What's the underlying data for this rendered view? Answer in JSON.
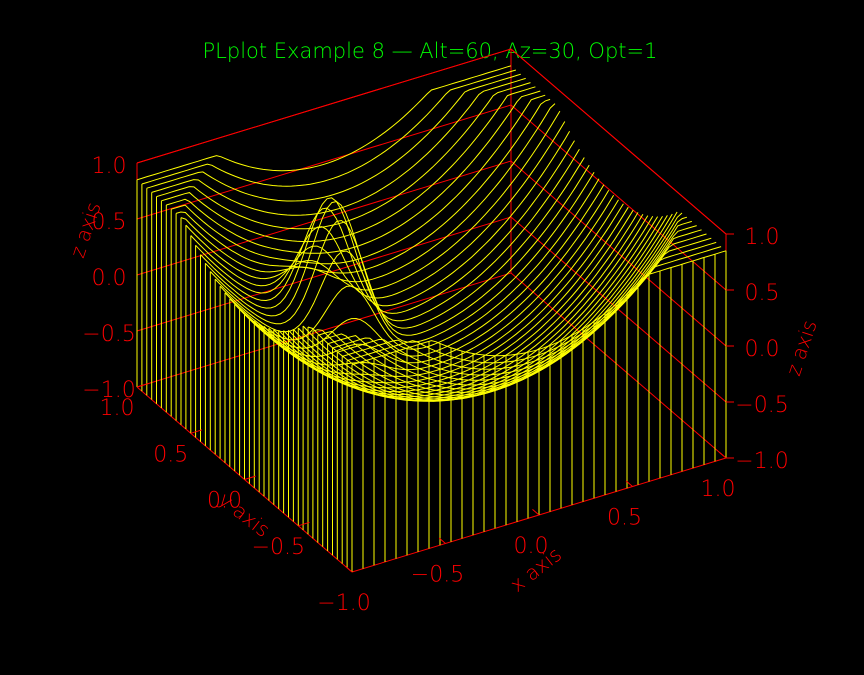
{
  "colors": {
    "background": "#000000",
    "title": "#00ff00",
    "axes": "#ff0000",
    "surface": "#ffff00"
  },
  "chart_data": {
    "type": "surface3d",
    "title": "PLplot Example 8 — Alt=60, Az=30, Opt=1",
    "view": {
      "altitude_deg": 60,
      "azimuth_deg": 30,
      "opt": 1
    },
    "xlabel": "x axis",
    "ylabel": "y axis",
    "zlabel": "z axis",
    "xlim": [
      -1.0,
      1.0
    ],
    "ylim": [
      -1.0,
      1.0
    ],
    "zlim": [
      -1.0,
      1.0
    ],
    "x_ticks": [
      "−1.0",
      "−0.5",
      "0.0",
      "0.5",
      "1.0"
    ],
    "y_ticks": [
      "−0.5",
      "0.0",
      "0.5",
      "1.0"
    ],
    "z_ticks_left": [
      "1.0",
      "0.5",
      "0.0",
      "−0.5",
      "−1.0"
    ],
    "z_ticks_right": [
      "1.0",
      "0.5",
      "0.0",
      "−0.5",
      "−1.0"
    ],
    "x_tick_values": [
      -1.0,
      -0.5,
      0.0,
      0.5,
      1.0
    ],
    "y_tick_values": [
      -0.5,
      0.0,
      0.5,
      1.0
    ],
    "z_tick_values": [
      1.0,
      0.5,
      0.0,
      -0.5,
      -1.0
    ],
    "grid_resolution": {
      "nx": 35,
      "ny": 45
    },
    "surface_features": [
      {
        "kind": "peak",
        "x": -0.33,
        "y": 0.33,
        "z": 0.9
      },
      {
        "kind": "depression",
        "x": 0.0,
        "y": 0.0,
        "z": -0.6
      },
      {
        "kind": "rim",
        "edges": "x=±1, y=±1",
        "z": 1.0
      }
    ]
  }
}
